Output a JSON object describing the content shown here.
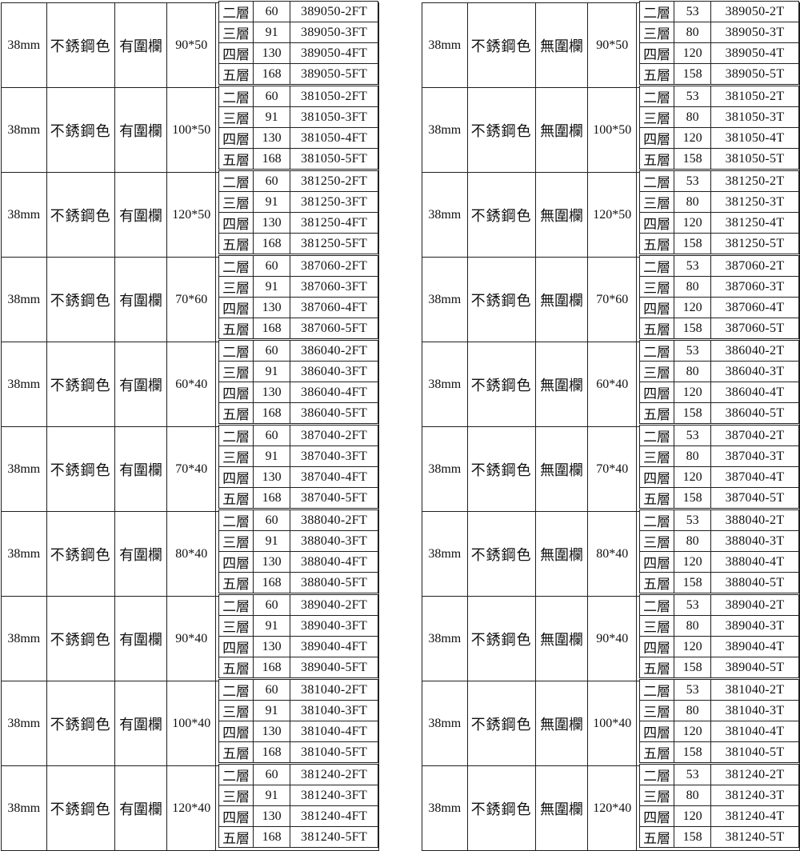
{
  "page": {
    "background": "#ffffff",
    "border_color": "#1f1f1f",
    "text_color": "#101010"
  },
  "tables": [
    {
      "id": "with-fence",
      "blocks": [
        {
          "thickness": "38mm",
          "color": "不銹鋼色",
          "fence": "有圍欄",
          "size": "90*50",
          "tiers": [
            [
              "二層",
              "60",
              "389050-2FT"
            ],
            [
              "三層",
              "91",
              "389050-3FT"
            ],
            [
              "四層",
              "130",
              "389050-4FT"
            ],
            [
              "五層",
              "168",
              "389050-5FT"
            ]
          ]
        },
        {
          "thickness": "38mm",
          "color": "不銹鋼色",
          "fence": "有圍欄",
          "size": "100*50",
          "tiers": [
            [
              "二層",
              "60",
              "381050-2FT"
            ],
            [
              "三層",
              "91",
              "381050-3FT"
            ],
            [
              "四層",
              "130",
              "381050-4FT"
            ],
            [
              "五層",
              "168",
              "381050-5FT"
            ]
          ]
        },
        {
          "thickness": "38mm",
          "color": "不銹鋼色",
          "fence": "有圍欄",
          "size": "120*50",
          "tiers": [
            [
              "二層",
              "60",
              "381250-2FT"
            ],
            [
              "三層",
              "91",
              "381250-3FT"
            ],
            [
              "四層",
              "130",
              "381250-4FT"
            ],
            [
              "五層",
              "168",
              "381250-5FT"
            ]
          ]
        },
        {
          "thickness": "38mm",
          "color": "不銹鋼色",
          "fence": "有圍欄",
          "size": "70*60",
          "tiers": [
            [
              "二層",
              "60",
              "387060-2FT"
            ],
            [
              "三層",
              "91",
              "387060-3FT"
            ],
            [
              "四層",
              "130",
              "387060-4FT"
            ],
            [
              "五層",
              "168",
              "387060-5FT"
            ]
          ]
        },
        {
          "thickness": "38mm",
          "color": "不銹鋼色",
          "fence": "有圍欄",
          "size": "60*40",
          "tiers": [
            [
              "二層",
              "60",
              "386040-2FT"
            ],
            [
              "三層",
              "91",
              "386040-3FT"
            ],
            [
              "四層",
              "130",
              "386040-4FT"
            ],
            [
              "五層",
              "168",
              "386040-5FT"
            ]
          ]
        },
        {
          "thickness": "38mm",
          "color": "不銹鋼色",
          "fence": "有圍欄",
          "size": "70*40",
          "tiers": [
            [
              "二層",
              "60",
              "387040-2FT"
            ],
            [
              "三層",
              "91",
              "387040-3FT"
            ],
            [
              "四層",
              "130",
              "387040-4FT"
            ],
            [
              "五層",
              "168",
              "387040-5FT"
            ]
          ]
        },
        {
          "thickness": "38mm",
          "color": "不銹鋼色",
          "fence": "有圍欄",
          "size": "80*40",
          "tiers": [
            [
              "二層",
              "60",
              "388040-2FT"
            ],
            [
              "三層",
              "91",
              "388040-3FT"
            ],
            [
              "四層",
              "130",
              "388040-4FT"
            ],
            [
              "五層",
              "168",
              "388040-5FT"
            ]
          ]
        },
        {
          "thickness": "38mm",
          "color": "不銹鋼色",
          "fence": "有圍欄",
          "size": "90*40",
          "tiers": [
            [
              "二層",
              "60",
              "389040-2FT"
            ],
            [
              "三層",
              "91",
              "389040-3FT"
            ],
            [
              "四層",
              "130",
              "389040-4FT"
            ],
            [
              "五層",
              "168",
              "389040-5FT"
            ]
          ]
        },
        {
          "thickness": "38mm",
          "color": "不銹鋼色",
          "fence": "有圍欄",
          "size": "100*40",
          "tiers": [
            [
              "二層",
              "60",
              "381040-2FT"
            ],
            [
              "三層",
              "91",
              "381040-3FT"
            ],
            [
              "四層",
              "130",
              "381040-4FT"
            ],
            [
              "五層",
              "168",
              "381040-5FT"
            ]
          ]
        },
        {
          "thickness": "38mm",
          "color": "不銹鋼色",
          "fence": "有圍欄",
          "size": "120*40",
          "tiers": [
            [
              "二層",
              "60",
              "381240-2FT"
            ],
            [
              "三層",
              "91",
              "381240-3FT"
            ],
            [
              "四層",
              "130",
              "381240-4FT"
            ],
            [
              "五層",
              "168",
              "381240-5FT"
            ]
          ]
        }
      ]
    },
    {
      "id": "without-fence",
      "blocks": [
        {
          "thickness": "38mm",
          "color": "不銹鋼色",
          "fence": "無圍欄",
          "size": "90*50",
          "tiers": [
            [
              "二層",
              "53",
              "389050-2T"
            ],
            [
              "三層",
              "80",
              "389050-3T"
            ],
            [
              "四層",
              "120",
              "389050-4T"
            ],
            [
              "五層",
              "158",
              "389050-5T"
            ]
          ]
        },
        {
          "thickness": "38mm",
          "color": "不銹鋼色",
          "fence": "無圍欄",
          "size": "100*50",
          "tiers": [
            [
              "二層",
              "53",
              "381050-2T"
            ],
            [
              "三層",
              "80",
              "381050-3T"
            ],
            [
              "四層",
              "120",
              "381050-4T"
            ],
            [
              "五層",
              "158",
              "381050-5T"
            ]
          ]
        },
        {
          "thickness": "38mm",
          "color": "不銹鋼色",
          "fence": "無圍欄",
          "size": "120*50",
          "tiers": [
            [
              "二層",
              "53",
              "381250-2T"
            ],
            [
              "三層",
              "80",
              "381250-3T"
            ],
            [
              "四層",
              "120",
              "381250-4T"
            ],
            [
              "五層",
              "158",
              "381250-5T"
            ]
          ]
        },
        {
          "thickness": "38mm",
          "color": "不銹鋼色",
          "fence": "無圍欄",
          "size": "70*60",
          "tiers": [
            [
              "二層",
              "53",
              "387060-2T"
            ],
            [
              "三層",
              "80",
              "387060-3T"
            ],
            [
              "四層",
              "120",
              "387060-4T"
            ],
            [
              "五層",
              "158",
              "387060-5T"
            ]
          ]
        },
        {
          "thickness": "38mm",
          "color": "不銹鋼色",
          "fence": "無圍欄",
          "size": "60*40",
          "tiers": [
            [
              "二層",
              "53",
              "386040-2T"
            ],
            [
              "三層",
              "80",
              "386040-3T"
            ],
            [
              "四層",
              "120",
              "386040-4T"
            ],
            [
              "五層",
              "158",
              "386040-5T"
            ]
          ]
        },
        {
          "thickness": "38mm",
          "color": "不銹鋼色",
          "fence": "無圍欄",
          "size": "70*40",
          "tiers": [
            [
              "二層",
              "53",
              "387040-2T"
            ],
            [
              "三層",
              "80",
              "387040-3T"
            ],
            [
              "四層",
              "120",
              "387040-4T"
            ],
            [
              "五層",
              "158",
              "387040-5T"
            ]
          ]
        },
        {
          "thickness": "38mm",
          "color": "不銹鋼色",
          "fence": "無圍欄",
          "size": "80*40",
          "tiers": [
            [
              "二層",
              "53",
              "388040-2T"
            ],
            [
              "三層",
              "80",
              "388040-3T"
            ],
            [
              "四層",
              "120",
              "388040-4T"
            ],
            [
              "五層",
              "158",
              "388040-5T"
            ]
          ]
        },
        {
          "thickness": "38mm",
          "color": "不銹鋼色",
          "fence": "無圍欄",
          "size": "90*40",
          "tiers": [
            [
              "二層",
              "53",
              "389040-2T"
            ],
            [
              "三層",
              "80",
              "389040-3T"
            ],
            [
              "四層",
              "120",
              "389040-4T"
            ],
            [
              "五層",
              "158",
              "389040-5T"
            ]
          ]
        },
        {
          "thickness": "38mm",
          "color": "不銹鋼色",
          "fence": "無圍欄",
          "size": "100*40",
          "tiers": [
            [
              "二層",
              "53",
              "381040-2T"
            ],
            [
              "三層",
              "80",
              "381040-3T"
            ],
            [
              "四層",
              "120",
              "381040-4T"
            ],
            [
              "五層",
              "158",
              "381040-5T"
            ]
          ]
        },
        {
          "thickness": "38mm",
          "color": "不銹鋼色",
          "fence": "無圍欄",
          "size": "120*40",
          "tiers": [
            [
              "二層",
              "53",
              "381240-2T"
            ],
            [
              "三層",
              "80",
              "381240-3T"
            ],
            [
              "四層",
              "120",
              "381240-4T"
            ],
            [
              "五層",
              "158",
              "381240-5T"
            ]
          ]
        }
      ]
    }
  ]
}
